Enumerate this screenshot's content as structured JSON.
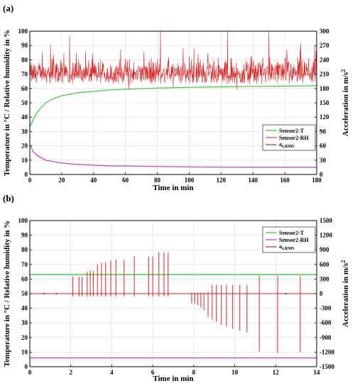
{
  "panels": [
    {
      "label": "(a)",
      "chart_data": {
        "type": "line",
        "xlabel": "Time in min",
        "ylabel_left": "Temperature in °C / Relative humidity in %",
        "ylabel_right": "Acceleration in m/s",
        "ylabel_right_sup": "2",
        "xlim": [
          0,
          180
        ],
        "ylim_left": [
          0,
          100
        ],
        "ylim_right": [
          0,
          300
        ],
        "x_ticks": [
          0,
          20,
          40,
          60,
          80,
          100,
          120,
          140,
          160,
          180
        ],
        "y_left_ticks": [
          0,
          10,
          20,
          30,
          40,
          50,
          60,
          70,
          80,
          90,
          100
        ],
        "y_right_ticks": [
          0,
          30,
          60,
          90,
          120,
          150,
          180,
          210,
          240,
          270,
          300
        ],
        "grid": true,
        "legend_position": "lower-right",
        "legend": [
          {
            "name": "Sensor2-T",
            "color": "#33cc33"
          },
          {
            "name": "Sensor2-RH",
            "color": "#cc33cc"
          },
          {
            "name": "a",
            "sub": "z,RMS",
            "color": "#dd2222"
          }
        ],
        "series": [
          {
            "name": "Sensor2-T",
            "axis": "left",
            "color": "#33cc33",
            "x": [
              0,
              2,
              5,
              10,
              15,
              20,
              30,
              40,
              50,
              60,
              80,
              100,
              120,
              140,
              160,
              180
            ],
            "y": [
              33,
              38,
              44,
              50,
              53,
              55,
              57,
              58,
              59,
              59.5,
              60.3,
              60.8,
              61.2,
              61.5,
              61.7,
              62
            ]
          },
          {
            "name": "Sensor2-RH",
            "axis": "left",
            "color": "#cc33cc",
            "x": [
              0,
              2,
              5,
              10,
              15,
              20,
              30,
              40,
              50,
              60,
              80,
              100,
              120,
              140,
              160,
              180
            ],
            "y": [
              21,
              16,
              13,
              10,
              9,
              8,
              7,
              6.5,
              6,
              6,
              5.6,
              5.3,
              5.1,
              5,
              5,
              5
            ]
          },
          {
            "name": "a_z,RMS",
            "axis": "right",
            "color": "#dd2222",
            "x_range": [
              0,
              180
            ],
            "baseline": 210,
            "noise_low": 188,
            "noise_high": 245,
            "spikes": [
              {
                "x": 25,
                "y": 290
              },
              {
                "x": 82,
                "y": 300
              },
              {
                "x": 124,
                "y": 300
              },
              {
                "x": 150,
                "y": 300
              },
              {
                "x": 170,
                "y": 275
              },
              {
                "x": 13,
                "y": 272
              },
              {
                "x": 35,
                "y": 258
              },
              {
                "x": 57,
                "y": 262
              },
              {
                "x": 103,
                "y": 265
              },
              {
                "x": 62,
                "y": 178
              },
              {
                "x": 90,
                "y": 180
              },
              {
                "x": 130,
                "y": 178
              }
            ]
          }
        ]
      }
    },
    {
      "label": "(b)",
      "chart_data": {
        "type": "line",
        "xlabel": "Time in min",
        "ylabel_left": "Temperature in °C / Relative humidity in %",
        "ylabel_right": "Acceleration in m/s",
        "ylabel_right_sup": "2",
        "xlim": [
          0,
          14
        ],
        "ylim_left": [
          0,
          100
        ],
        "ylim_right": [
          -1500,
          1500
        ],
        "x_ticks": [
          0,
          2,
          4,
          6,
          8,
          10,
          12,
          14
        ],
        "y_left_ticks": [
          0,
          10,
          20,
          30,
          40,
          50,
          60,
          70,
          80,
          90,
          100
        ],
        "y_right_ticks": [
          -1500,
          -1200,
          -900,
          -600,
          -300,
          0,
          300,
          600,
          900,
          1200,
          1500
        ],
        "grid": true,
        "legend_position": "top-right",
        "legend": [
          {
            "name": "Sensor2-T",
            "color": "#33cc33"
          },
          {
            "name": "Sensor2-RH",
            "color": "#cc33cc"
          },
          {
            "name": "a",
            "sub": "z,RMS",
            "color": "#dd2222"
          }
        ],
        "series": [
          {
            "name": "Sensor2-T",
            "axis": "left",
            "color": "#33cc33",
            "x": [
              0,
              14
            ],
            "y": [
              63,
              63
            ]
          },
          {
            "name": "Sensor2-RH",
            "axis": "left",
            "color": "#cc33cc",
            "x": [
              0,
              14
            ],
            "y": [
              6,
              6
            ]
          },
          {
            "name": "a_z,RMS",
            "axis": "right",
            "color": "#dd2222",
            "baseline": 0,
            "line_segments": [
              [
                0,
                7.8
              ],
              [
                7.8,
                14
              ]
            ],
            "bursts": [
              {
                "x": 2.1,
                "min": -60,
                "max": 350
              },
              {
                "x": 2.4,
                "min": -60,
                "max": 350
              },
              {
                "x": 2.55,
                "min": -60,
                "max": 350
              },
              {
                "x": 2.8,
                "min": -60,
                "max": 450
              },
              {
                "x": 2.95,
                "min": -60,
                "max": 470
              },
              {
                "x": 3.1,
                "min": -60,
                "max": 470
              },
              {
                "x": 3.3,
                "min": -60,
                "max": 600
              },
              {
                "x": 3.5,
                "min": -60,
                "max": 630
              },
              {
                "x": 3.7,
                "min": -60,
                "max": 640
              },
              {
                "x": 3.95,
                "min": -60,
                "max": 680
              },
              {
                "x": 4.2,
                "min": -60,
                "max": 700
              },
              {
                "x": 4.6,
                "min": -60,
                "max": 690
              },
              {
                "x": 5.1,
                "min": -60,
                "max": 770
              },
              {
                "x": 5.8,
                "min": -60,
                "max": 760
              },
              {
                "x": 6.0,
                "min": -60,
                "max": 760
              },
              {
                "x": 6.3,
                "min": -60,
                "max": 850
              },
              {
                "x": 6.55,
                "min": -60,
                "max": 850
              },
              {
                "x": 6.75,
                "min": -60,
                "max": 840
              },
              {
                "x": 7.9,
                "min": -200,
                "max": 20
              },
              {
                "x": 8.05,
                "min": -210,
                "max": 20
              },
              {
                "x": 8.2,
                "min": -240,
                "max": 20
              },
              {
                "x": 8.35,
                "min": -280,
                "max": 20
              },
              {
                "x": 8.5,
                "min": -340,
                "max": 20
              },
              {
                "x": 8.7,
                "min": -480,
                "max": 40
              },
              {
                "x": 8.9,
                "min": -530,
                "max": 180
              },
              {
                "x": 9.1,
                "min": -580,
                "max": 180
              },
              {
                "x": 9.35,
                "min": -640,
                "max": 180
              },
              {
                "x": 9.6,
                "min": -680,
                "max": 180
              },
              {
                "x": 9.9,
                "min": -720,
                "max": 180
              },
              {
                "x": 10.25,
                "min": -760,
                "max": 180
              },
              {
                "x": 10.6,
                "min": -800,
                "max": 180
              },
              {
                "x": 11.2,
                "min": -1190,
                "max": 370
              },
              {
                "x": 12.1,
                "min": -1220,
                "max": 370
              },
              {
                "x": 13.2,
                "min": -1200,
                "max": 360
              }
            ],
            "markers_x": [
              0.7,
              1.3,
              12.5
            ]
          }
        ]
      }
    }
  ]
}
